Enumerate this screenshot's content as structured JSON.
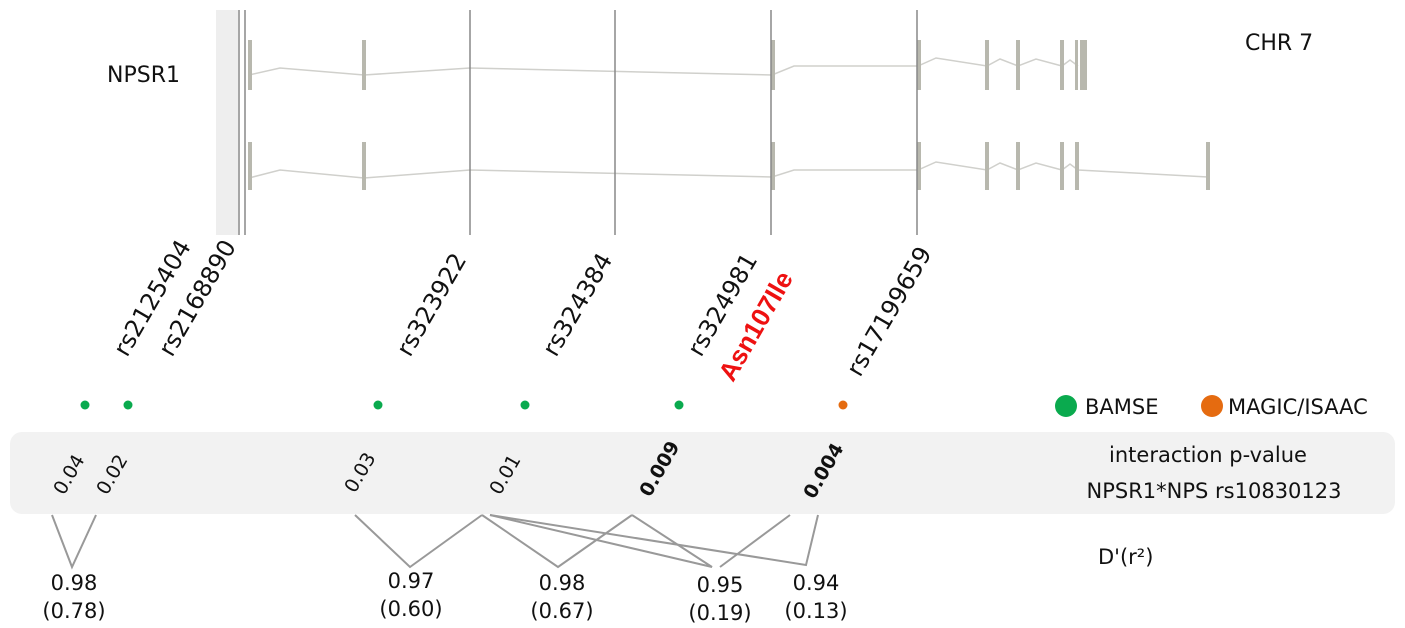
{
  "gene": {
    "name": "NPSR1",
    "chromosome": "CHR 7"
  },
  "snps": [
    {
      "id": "rs2125404"
    },
    {
      "id": "rs2168890"
    },
    {
      "id": "rs323922"
    },
    {
      "id": "rs324384"
    },
    {
      "id": "rs324981",
      "variant": "Asn107Ile"
    },
    {
      "id": "rs17199659"
    }
  ],
  "legend": {
    "items": [
      {
        "label": "BAMSE",
        "color": "#0aaa4e"
      },
      {
        "label": "MAGIC/ISAAC",
        "color": "#e56b10"
      }
    ]
  },
  "cohort_dots": [
    {
      "cohort": "BAMSE",
      "color": "#0aaa4e"
    },
    {
      "cohort": "BAMSE",
      "color": "#0aaa4e"
    },
    {
      "cohort": "BAMSE",
      "color": "#0aaa4e"
    },
    {
      "cohort": "BAMSE",
      "color": "#0aaa4e"
    },
    {
      "cohort": "BAMSE",
      "color": "#0aaa4e"
    },
    {
      "cohort": "MAGIC/ISAAC",
      "color": "#e56b10"
    }
  ],
  "interaction_panel": {
    "title": "interaction p-value",
    "subtitle": "NPSR1*NPS rs10830123",
    "pvalues": [
      {
        "value": "0.04",
        "bold": false
      },
      {
        "value": "0.02",
        "bold": false
      },
      {
        "value": "0.03",
        "bold": false
      },
      {
        "value": "0.01",
        "bold": false
      },
      {
        "value": "0.009",
        "bold": true
      },
      {
        "value": "0.004",
        "bold": true
      }
    ]
  },
  "ld": {
    "label": "D'(r²)",
    "pairs": [
      {
        "d_prime": "0.98",
        "r2": "(0.78)"
      },
      {
        "d_prime": "0.97",
        "r2": "(0.60)"
      },
      {
        "d_prime": "0.98",
        "r2": "(0.67)"
      },
      {
        "d_prime": "0.95",
        "r2": "(0.19)"
      },
      {
        "d_prime": "0.94",
        "r2": "(0.13)"
      }
    ]
  }
}
